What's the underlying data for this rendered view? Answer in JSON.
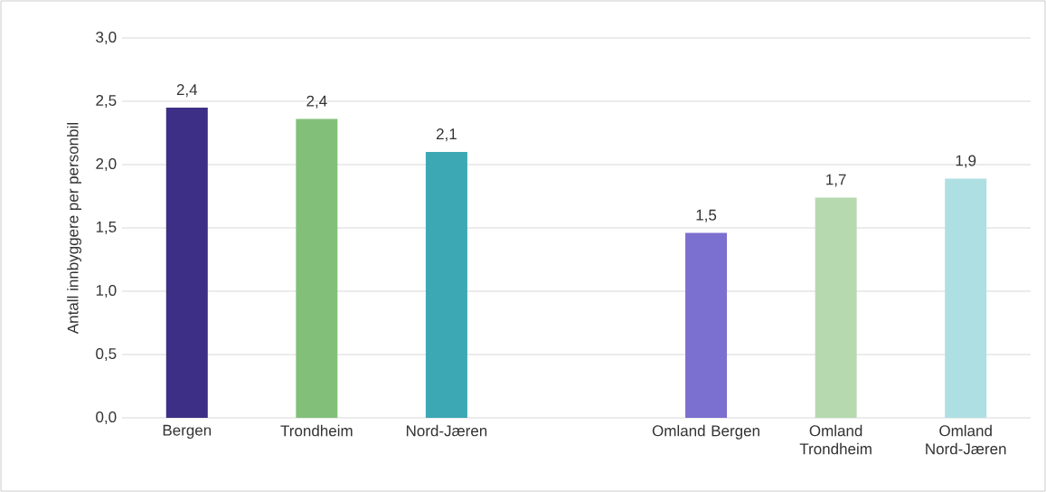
{
  "chart_data": {
    "type": "bar",
    "ylabel": "Antall innbyggere per personbil",
    "categories": [
      "Bergen",
      "Trondheim",
      "Nord-Jæren",
      null,
      "Omland Bergen",
      "Omland Trondheim",
      "Omland Nord-Jæren"
    ],
    "values": [
      2.45,
      2.36,
      2.1,
      null,
      1.46,
      1.74,
      1.89
    ],
    "value_labels": [
      "2,4",
      "2,4",
      "2,1",
      null,
      "1,5",
      "1,7",
      "1,9"
    ],
    "colors": [
      "#3c2f85",
      "#82c07a",
      "#3ca8b4",
      null,
      "#7b6fcf",
      "#b6d9af",
      "#aedfe3"
    ],
    "ylim": [
      0,
      3
    ],
    "yticks": [
      {
        "value": 0,
        "label": "0,0"
      },
      {
        "value": 0.5,
        "label": "0,5"
      },
      {
        "value": 1,
        "label": "1,0"
      },
      {
        "value": 1.5,
        "label": "1,5"
      },
      {
        "value": 2,
        "label": "2,0"
      },
      {
        "value": 2.5,
        "label": "2,5"
      },
      {
        "value": 3,
        "label": "3,0"
      }
    ],
    "grid": "y"
  }
}
